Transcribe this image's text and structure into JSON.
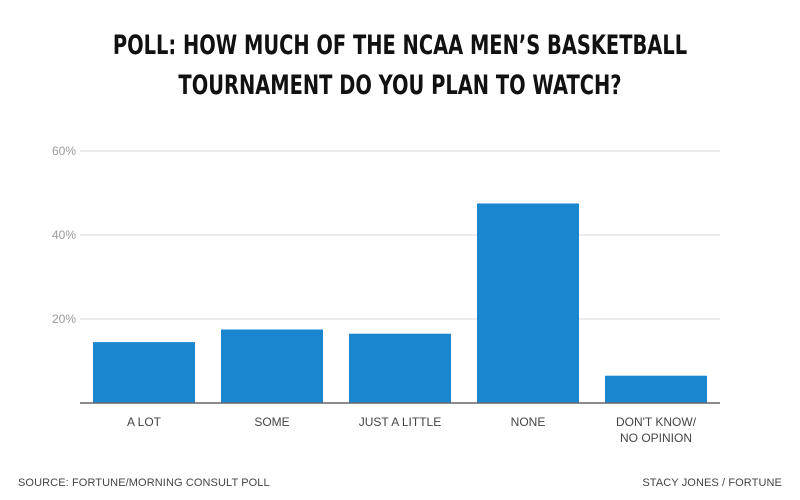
{
  "title_lines": [
    "POLL: HOW MUCH OF THE NCAA MEN’S BASKETBALL",
    "TOURNAMENT DO YOU PLAN TO WATCH?"
  ],
  "source": "SOURCE: FORTUNE/MORNING CONSULT POLL",
  "credit": "STACY JONES / FORTUNE",
  "colors": {
    "bar": "#1a86d0",
    "grid": "#d9d9d9",
    "axis": "#666666"
  },
  "chart_data": {
    "type": "bar",
    "categories": [
      [
        "A LOT"
      ],
      [
        "SOME"
      ],
      [
        "JUST A LITTLE"
      ],
      [
        "NONE"
      ],
      [
        "DON'T KNOW/",
        "NO OPINION"
      ]
    ],
    "values": [
      14.5,
      17.5,
      16.5,
      47.5,
      6.5
    ],
    "unit": "%",
    "yticks": [
      20,
      40,
      60
    ],
    "ylim": [
      0,
      60
    ],
    "grid": true
  }
}
